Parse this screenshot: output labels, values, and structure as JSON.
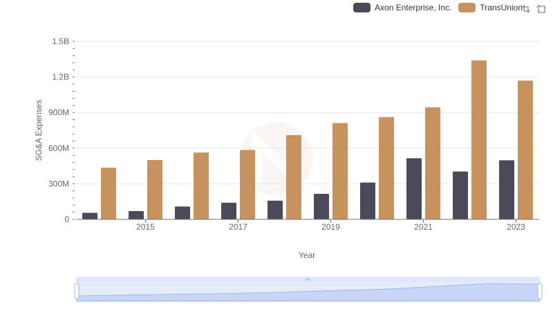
{
  "chart_data": {
    "type": "bar",
    "categories": [
      "2014",
      "2015",
      "2016",
      "2017",
      "2018",
      "2019",
      "2020",
      "2021",
      "2022",
      "2023"
    ],
    "x_tick_labels": [
      "2015",
      "2017",
      "2019",
      "2021",
      "2023"
    ],
    "series": [
      {
        "name": "Axon Enterprise, Inc.",
        "color": "#4a4a58",
        "values": [
          55000000,
          70000000,
          108000000,
          140000000,
          158000000,
          215000000,
          310000000,
          515000000,
          403000000,
          498000000
        ]
      },
      {
        "name": "TransUnion",
        "color": "#c8925e",
        "values": [
          435000000,
          500000000,
          563000000,
          585000000,
          710000000,
          812000000,
          862000000,
          945000000,
          1340000000,
          1170000000
        ]
      }
    ],
    "y_ticks": [
      0,
      300000000,
      600000000,
      900000000,
      1200000000,
      1500000000
    ],
    "y_tick_labels": [
      "0",
      "300M",
      "600M",
      "900M",
      "1.2B",
      "1.5B"
    ],
    "ylim": [
      0,
      1500000000
    ],
    "xlabel": "Year",
    "ylabel": "SG&A Expenses",
    "grid": true,
    "legend_position": "top-right",
    "data_zoom": {
      "start_percent": 0,
      "end_percent": 100
    }
  },
  "toolbox": {
    "icons": [
      "zoom-icon",
      "restore-icon"
    ]
  }
}
